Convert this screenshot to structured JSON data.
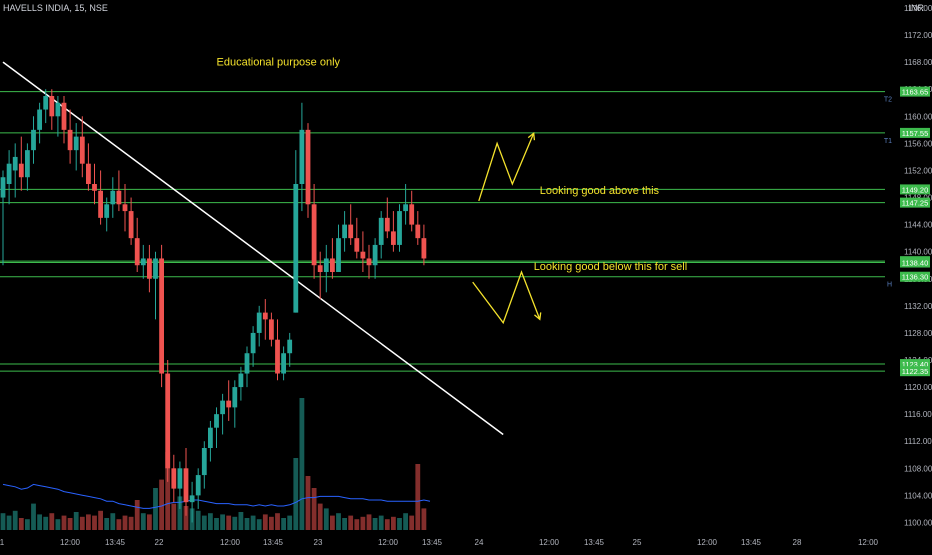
{
  "header": {
    "title": "HAVELLS INDIA, 15, NSE",
    "currency": "INR"
  },
  "colors": {
    "up": "#26a69a",
    "down": "#ef5350",
    "level": "#3dbb4d",
    "trend": "#ffffff",
    "annotation": "#f4e22c",
    "volume_ma": "#2962ff",
    "axis_text": "#b2b5be"
  },
  "chart_data": {
    "type": "candlestick",
    "symbol": "HAVELLS INDIA",
    "interval": "15",
    "exchange": "NSE",
    "y_axis": {
      "range": [
        1098,
        1176
      ],
      "ticks": [
        1100,
        1104,
        1108,
        1112,
        1116,
        1120,
        1124,
        1128,
        1132,
        1136,
        1140,
        1144,
        1148,
        1152,
        1156,
        1160,
        1164,
        1168,
        1172,
        1176
      ]
    },
    "x_axis": {
      "labels": [
        "1",
        "12:00",
        "13:45",
        "22",
        "12:00",
        "13:45",
        "23",
        "12:00",
        "13:45",
        "24",
        "12:00",
        "13:45",
        "25",
        "12:00",
        "13:45",
        "28",
        "12:00"
      ]
    },
    "candles": [
      {
        "o": 1148,
        "h": 1152,
        "l": 1138,
        "c": 1151
      },
      {
        "o": 1150,
        "h": 1155,
        "l": 1147,
        "c": 1153
      },
      {
        "o": 1152,
        "h": 1156,
        "l": 1148,
        "c": 1154
      },
      {
        "o": 1153,
        "h": 1157,
        "l": 1149,
        "c": 1151
      },
      {
        "o": 1151,
        "h": 1156,
        "l": 1149,
        "c": 1155
      },
      {
        "o": 1155,
        "h": 1160,
        "l": 1153,
        "c": 1158
      },
      {
        "o": 1158,
        "h": 1162,
        "l": 1156,
        "c": 1161
      },
      {
        "o": 1161,
        "h": 1164,
        "l": 1159,
        "c": 1163
      },
      {
        "o": 1163,
        "h": 1164,
        "l": 1158,
        "c": 1160
      },
      {
        "o": 1160,
        "h": 1163,
        "l": 1157,
        "c": 1162
      },
      {
        "o": 1162,
        "h": 1163,
        "l": 1156,
        "c": 1158
      },
      {
        "o": 1158,
        "h": 1161,
        "l": 1153,
        "c": 1155
      },
      {
        "o": 1155,
        "h": 1159,
        "l": 1152,
        "c": 1157
      },
      {
        "o": 1157,
        "h": 1160,
        "l": 1151,
        "c": 1153
      },
      {
        "o": 1153,
        "h": 1156,
        "l": 1149,
        "c": 1150
      },
      {
        "o": 1150,
        "h": 1153,
        "l": 1147,
        "c": 1149
      },
      {
        "o": 1149,
        "h": 1152,
        "l": 1144,
        "c": 1145
      },
      {
        "o": 1145,
        "h": 1148,
        "l": 1143,
        "c": 1147
      },
      {
        "o": 1147,
        "h": 1151,
        "l": 1145,
        "c": 1149
      },
      {
        "o": 1149,
        "h": 1152,
        "l": 1146,
        "c": 1147
      },
      {
        "o": 1147,
        "h": 1150,
        "l": 1143,
        "c": 1146
      },
      {
        "o": 1146,
        "h": 1148,
        "l": 1141,
        "c": 1142
      },
      {
        "o": 1142,
        "h": 1145,
        "l": 1137,
        "c": 1138
      },
      {
        "o": 1138,
        "h": 1141,
        "l": 1136,
        "c": 1139
      },
      {
        "o": 1139,
        "h": 1141,
        "l": 1134,
        "c": 1136
      },
      {
        "o": 1136,
        "h": 1140,
        "l": 1130,
        "c": 1139
      },
      {
        "o": 1139,
        "h": 1141,
        "l": 1120,
        "c": 1122
      },
      {
        "o": 1122,
        "h": 1124,
        "l": 1106,
        "c": 1108
      },
      {
        "o": 1108,
        "h": 1110,
        "l": 1103,
        "c": 1105
      },
      {
        "o": 1105,
        "h": 1109,
        "l": 1102,
        "c": 1108
      },
      {
        "o": 1108,
        "h": 1111,
        "l": 1101,
        "c": 1103
      },
      {
        "o": 1103,
        "h": 1106,
        "l": 1100,
        "c": 1104
      },
      {
        "o": 1104,
        "h": 1108,
        "l": 1102,
        "c": 1107
      },
      {
        "o": 1107,
        "h": 1112,
        "l": 1105,
        "c": 1111
      },
      {
        "o": 1111,
        "h": 1115,
        "l": 1109,
        "c": 1114
      },
      {
        "o": 1114,
        "h": 1117,
        "l": 1111,
        "c": 1116
      },
      {
        "o": 1116,
        "h": 1119,
        "l": 1113,
        "c": 1118
      },
      {
        "o": 1118,
        "h": 1121,
        "l": 1115,
        "c": 1117
      },
      {
        "o": 1117,
        "h": 1121,
        "l": 1114,
        "c": 1120
      },
      {
        "o": 1120,
        "h": 1123,
        "l": 1118,
        "c": 1122
      },
      {
        "o": 1122,
        "h": 1126,
        "l": 1120,
        "c": 1125
      },
      {
        "o": 1125,
        "h": 1129,
        "l": 1123,
        "c": 1128
      },
      {
        "o": 1128,
        "h": 1132,
        "l": 1126,
        "c": 1131
      },
      {
        "o": 1131,
        "h": 1133,
        "l": 1127,
        "c": 1130
      },
      {
        "o": 1130,
        "h": 1131,
        "l": 1126,
        "c": 1127
      },
      {
        "o": 1127,
        "h": 1130,
        "l": 1121,
        "c": 1122
      },
      {
        "o": 1122,
        "h": 1126,
        "l": 1121,
        "c": 1125
      },
      {
        "o": 1125,
        "h": 1128,
        "l": 1123,
        "c": 1127
      },
      {
        "o": 1131,
        "h": 1155,
        "l": 1131,
        "c": 1150
      },
      {
        "o": 1150,
        "h": 1162,
        "l": 1146,
        "c": 1158
      },
      {
        "o": 1158,
        "h": 1159,
        "l": 1145,
        "c": 1147
      },
      {
        "o": 1147,
        "h": 1150,
        "l": 1136,
        "c": 1138
      },
      {
        "o": 1138,
        "h": 1140,
        "l": 1133,
        "c": 1137
      },
      {
        "o": 1137,
        "h": 1141,
        "l": 1134,
        "c": 1139
      },
      {
        "o": 1139,
        "h": 1142,
        "l": 1136,
        "c": 1137
      },
      {
        "o": 1137,
        "h": 1144,
        "l": 1137,
        "c": 1142
      },
      {
        "o": 1142,
        "h": 1146,
        "l": 1140,
        "c": 1144
      },
      {
        "o": 1144,
        "h": 1147,
        "l": 1141,
        "c": 1142
      },
      {
        "o": 1142,
        "h": 1145,
        "l": 1139,
        "c": 1140
      },
      {
        "o": 1140,
        "h": 1143,
        "l": 1137,
        "c": 1139
      },
      {
        "o": 1139,
        "h": 1141,
        "l": 1136,
        "c": 1138
      },
      {
        "o": 1138,
        "h": 1142,
        "l": 1136,
        "c": 1141
      },
      {
        "o": 1141,
        "h": 1146,
        "l": 1139,
        "c": 1145
      },
      {
        "o": 1145,
        "h": 1148,
        "l": 1142,
        "c": 1143
      },
      {
        "o": 1143,
        "h": 1146,
        "l": 1140,
        "c": 1141
      },
      {
        "o": 1141,
        "h": 1147,
        "l": 1140,
        "c": 1146
      },
      {
        "o": 1146,
        "h": 1150,
        "l": 1144,
        "c": 1147
      },
      {
        "o": 1147,
        "h": 1149,
        "l": 1143,
        "c": 1144
      },
      {
        "o": 1144,
        "h": 1146,
        "l": 1141,
        "c": 1142
      },
      {
        "o": 1142,
        "h": 1144,
        "l": 1138,
        "c": 1139
      }
    ],
    "volume": [
      14,
      12,
      16,
      10,
      9,
      22,
      13,
      11,
      14,
      9,
      12,
      10,
      15,
      11,
      13,
      12,
      16,
      10,
      14,
      9,
      12,
      11,
      25,
      14,
      13,
      35,
      42,
      65,
      22,
      28,
      20,
      18,
      16,
      12,
      14,
      10,
      13,
      12,
      11,
      15,
      10,
      12,
      9,
      13,
      11,
      14,
      10,
      12,
      60,
      110,
      45,
      35,
      22,
      18,
      12,
      14,
      10,
      12,
      9,
      11,
      13,
      10,
      12,
      9,
      11,
      10,
      14,
      12,
      55,
      18,
      15
    ],
    "volume_ma": [
      38,
      37,
      36,
      34,
      35,
      38,
      37,
      36,
      35,
      34,
      32,
      31,
      30,
      29,
      28,
      27,
      26,
      24,
      24,
      22,
      21,
      20,
      19,
      18,
      18,
      19,
      20,
      22,
      23,
      23,
      24,
      25,
      25,
      24,
      23,
      22,
      22,
      22,
      21,
      21,
      21,
      20,
      21,
      20,
      21,
      20,
      20,
      21,
      23,
      26,
      27,
      27,
      28,
      28,
      28,
      28,
      27,
      26,
      26,
      26,
      25,
      25,
      25,
      24,
      24,
      24,
      24,
      24,
      24,
      25,
      24
    ],
    "horizontal_levels": [
      {
        "price": 1163.65,
        "label": "1163.65",
        "tag": "T2"
      },
      {
        "price": 1157.55,
        "label": "1157.55",
        "tag": "T1"
      },
      {
        "price": 1149.2,
        "label": "1149.20",
        "tag": ""
      },
      {
        "price": 1147.25,
        "label": "1147.25",
        "tag": ""
      },
      {
        "price": 1138.6,
        "label": "1138.60",
        "tag": ""
      },
      {
        "price": 1138.4,
        "label": "1138.40",
        "tag": ""
      },
      {
        "price": 1136.3,
        "label": "1136.30",
        "tag": "H"
      },
      {
        "price": 1123.4,
        "label": "1123.40",
        "tag": ""
      },
      {
        "price": 1122.35,
        "label": "1122.35",
        "tag": ""
      }
    ],
    "trendline": {
      "from": {
        "bar": 0,
        "price": 1168
      },
      "to": {
        "bar": 82,
        "price": 1113
      }
    },
    "annotations": [
      {
        "text": "Educational purpose only",
        "bar": 35,
        "price": 1167.5
      },
      {
        "text": "Looking good above this",
        "bar": 88,
        "price": 1148.5
      },
      {
        "text": "Looking good below this for sell",
        "bar": 87,
        "price": 1137.3
      }
    ],
    "zigzag_paths": [
      [
        {
          "bar": 78,
          "price": 1147.5
        },
        {
          "bar": 81,
          "price": 1156
        },
        {
          "bar": 83.5,
          "price": 1150
        },
        {
          "bar": 87,
          "price": 1157.5
        }
      ],
      [
        {
          "bar": 77,
          "price": 1135.5
        },
        {
          "bar": 82,
          "price": 1129.5
        },
        {
          "bar": 85,
          "price": 1137
        },
        {
          "bar": 88,
          "price": 1130
        }
      ]
    ]
  }
}
